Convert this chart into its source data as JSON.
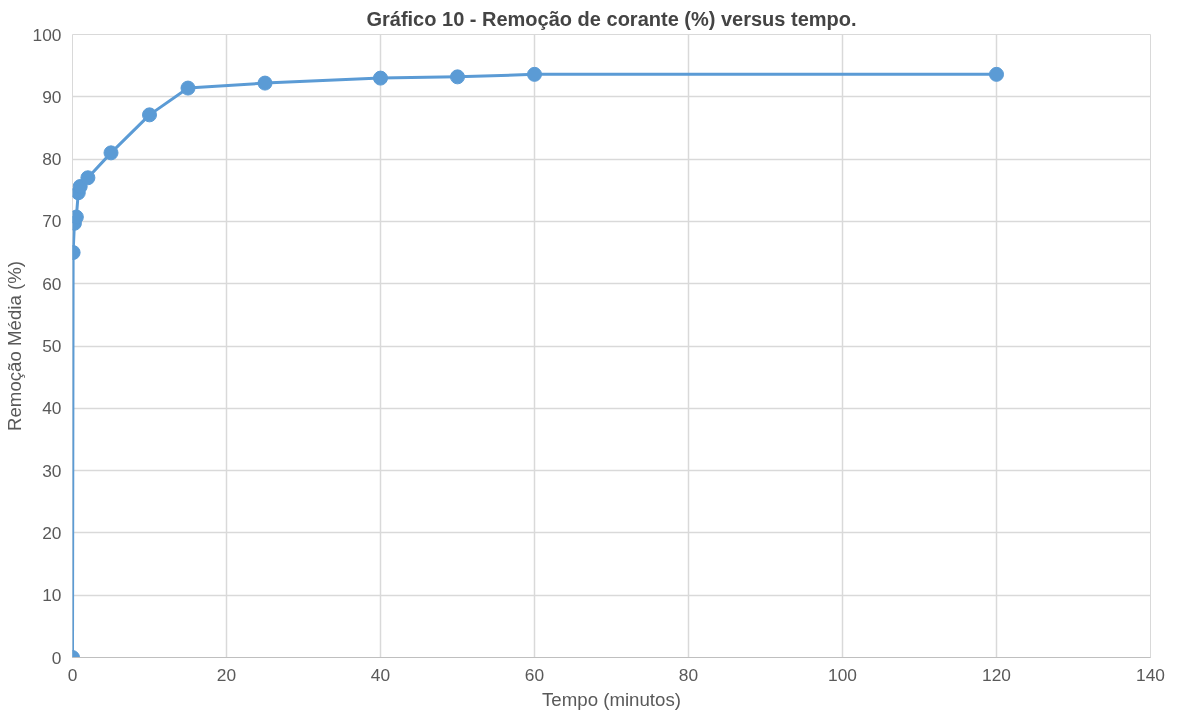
{
  "chart_data": {
    "type": "line",
    "title": "Gráfico 10 - Remoção de corante (%) versus tempo.",
    "xlabel": "Tempo (minutos)",
    "ylabel": "Remoção Média (%)",
    "x": [
      0,
      0.08,
      0.25,
      0.5,
      0.75,
      1,
      2,
      5,
      10,
      15,
      25,
      40,
      50,
      60,
      120
    ],
    "series": [
      {
        "color": "#5b9bd5",
        "values": [
          0,
          65,
          69.7,
          70.7,
          74.6,
          75.6,
          77,
          81,
          87.1,
          91.4,
          92.2,
          93,
          93.2,
          93.6,
          93.6
        ]
      }
    ],
    "xlim": [
      0,
      140
    ],
    "xticks": [
      0,
      20,
      40,
      60,
      80,
      100,
      120,
      140
    ],
    "ylim": [
      0,
      100
    ],
    "yticks": [
      0,
      10,
      20,
      30,
      40,
      50,
      60,
      70,
      80,
      90,
      100
    ],
    "grid": true,
    "marker": "circle",
    "line_style": "solid"
  }
}
